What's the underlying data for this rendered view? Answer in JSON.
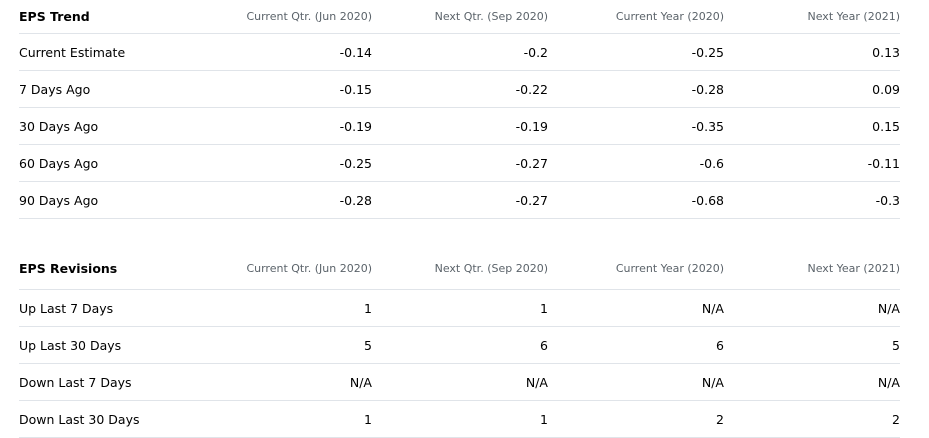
{
  "eps_trend": {
    "title": "EPS Trend",
    "columns": [
      "Current Qtr. (Jun 2020)",
      "Next Qtr. (Sep 2020)",
      "Current Year (2020)",
      "Next Year (2021)"
    ],
    "rows": [
      {
        "label": "Current Estimate",
        "values": [
          "-0.14",
          "-0.2",
          "-0.25",
          "0.13"
        ]
      },
      {
        "label": "7 Days Ago",
        "values": [
          "-0.15",
          "-0.22",
          "-0.28",
          "0.09"
        ]
      },
      {
        "label": "30 Days Ago",
        "values": [
          "-0.19",
          "-0.19",
          "-0.35",
          "0.15"
        ]
      },
      {
        "label": "60 Days Ago",
        "values": [
          "-0.25",
          "-0.27",
          "-0.6",
          "-0.11"
        ]
      },
      {
        "label": "90 Days Ago",
        "values": [
          "-0.28",
          "-0.27",
          "-0.68",
          "-0.3"
        ]
      }
    ]
  },
  "eps_revisions": {
    "title": "EPS Revisions",
    "columns": [
      "Current Qtr. (Jun 2020)",
      "Next Qtr. (Sep 2020)",
      "Current Year (2020)",
      "Next Year (2021)"
    ],
    "rows": [
      {
        "label": "Up Last 7 Days",
        "values": [
          "1",
          "1",
          "N/A",
          "N/A"
        ]
      },
      {
        "label": "Up Last 30 Days",
        "values": [
          "5",
          "6",
          "6",
          "5"
        ]
      },
      {
        "label": "Down Last 7 Days",
        "values": [
          "N/A",
          "N/A",
          "N/A",
          "N/A"
        ]
      },
      {
        "label": "Down Last 30 Days",
        "values": [
          "1",
          "1",
          "2",
          "2"
        ]
      }
    ]
  }
}
